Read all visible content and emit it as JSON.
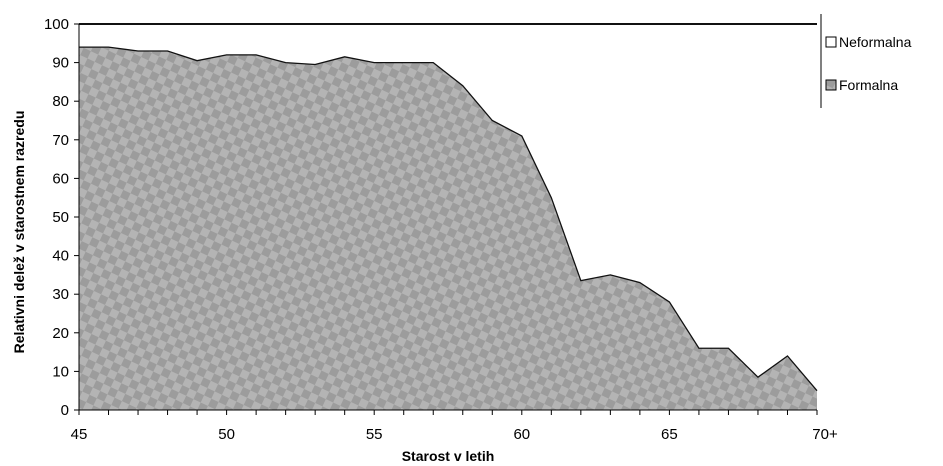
{
  "chart_data": {
    "type": "area",
    "xlabel": "Starost v letih",
    "ylabel": "Relativni delež v starostnem razredu",
    "x": [
      45,
      46,
      47,
      48,
      49,
      50,
      51,
      52,
      53,
      54,
      55,
      56,
      57,
      58,
      59,
      60,
      61,
      62,
      63,
      64,
      65,
      66,
      67,
      68,
      69,
      70
    ],
    "x_tick_labels": [
      {
        "x": 45,
        "label": "45"
      },
      {
        "x": 50,
        "label": "50"
      },
      {
        "x": 55,
        "label": "55"
      },
      {
        "x": 60,
        "label": "60"
      },
      {
        "x": 65,
        "label": "65"
      },
      {
        "x": 70,
        "label": "70+"
      }
    ],
    "y_ticks": [
      0,
      10,
      20,
      30,
      40,
      50,
      60,
      70,
      80,
      90,
      100
    ],
    "xlim": [
      45,
      70
    ],
    "ylim": [
      0,
      100
    ],
    "stacked": true,
    "series": [
      {
        "name": "Formalna",
        "values": [
          94,
          94,
          93,
          93,
          90.5,
          92,
          92,
          90,
          89.5,
          91.5,
          90,
          90,
          90,
          84,
          75,
          71,
          55,
          33.5,
          35,
          33,
          28,
          16,
          16,
          8.5,
          14,
          5
        ]
      },
      {
        "name": "Neformalna",
        "values": [
          6,
          6,
          7,
          7,
          9.5,
          8,
          8,
          10,
          10.5,
          8.5,
          10,
          10,
          10,
          16,
          25,
          29,
          45,
          66.5,
          65,
          67,
          72,
          84,
          84,
          91.5,
          86,
          95
        ]
      }
    ],
    "legend": {
      "position": "right",
      "entries": [
        "Neformalna",
        "Formalna"
      ]
    },
    "colors": {
      "formalna": "#9a9a9a",
      "neformalna": "#ffffff"
    },
    "grid": false
  }
}
